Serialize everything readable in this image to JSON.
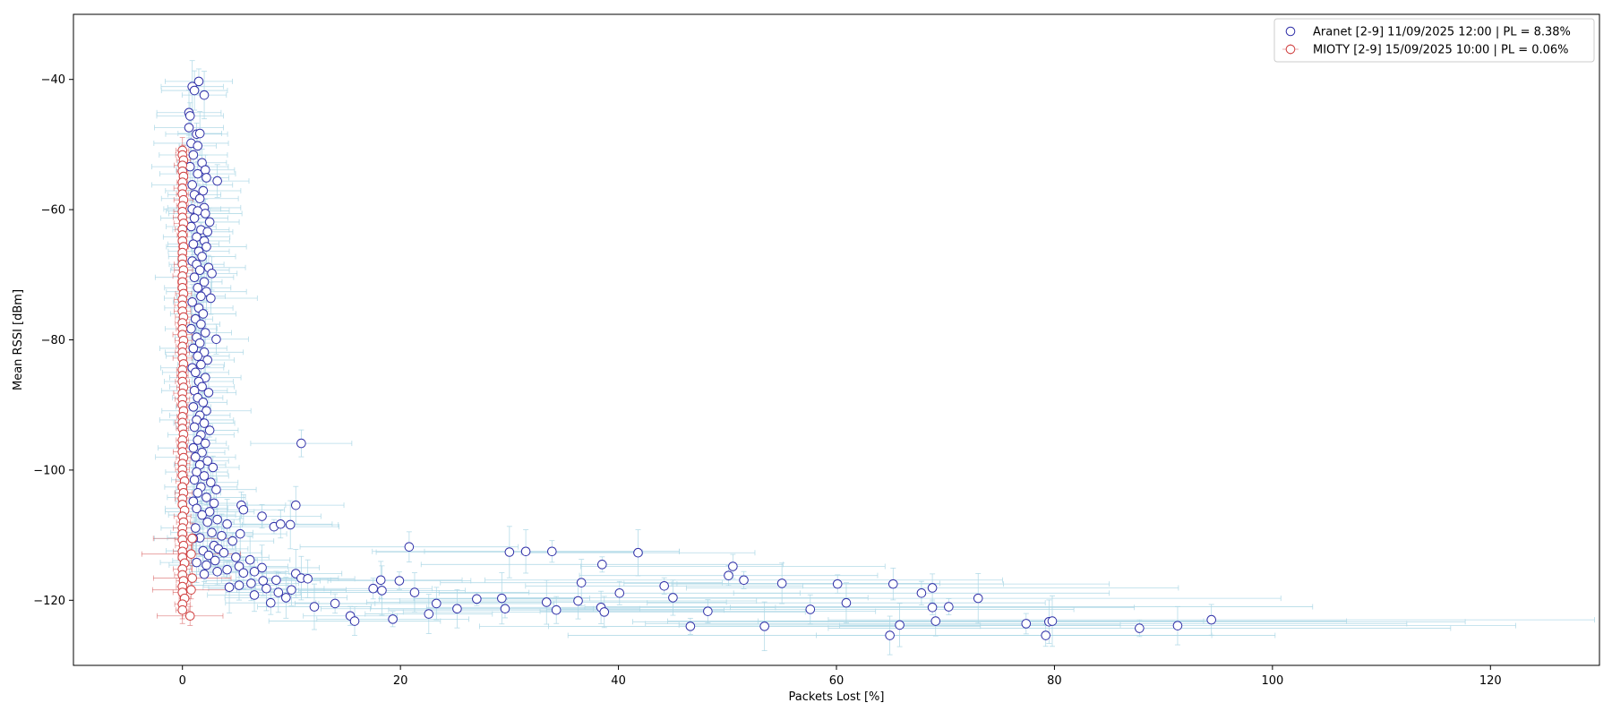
{
  "chart_data": {
    "type": "scatter",
    "title": "",
    "xlabel": "Packets Lost [%]",
    "ylabel": "Mean RSSI [dBm]",
    "xlim": [
      -10,
      130
    ],
    "ylim": [
      -130,
      -30
    ],
    "xticks": [
      0,
      20,
      40,
      60,
      80,
      100,
      120
    ],
    "yticks": [
      -40,
      -60,
      -80,
      -100,
      -120
    ],
    "grid": false,
    "legend_position": "top-right",
    "error_bars": true,
    "series": [
      {
        "name": "Aranet [2-9] 11/09/2025 12:00 | PL = 8.38%",
        "marker_edge_color": "#3030a8",
        "errorbar_color": "#add8e6",
        "points": [
          [
            1.5,
            -40.3
          ],
          [
            0.9,
            -41.1
          ],
          [
            1.1,
            -41.7
          ],
          [
            2.0,
            -42.4
          ],
          [
            0.6,
            -45.1
          ],
          [
            0.7,
            -45.6
          ],
          [
            0.6,
            -47.4
          ],
          [
            1.3,
            -48.4
          ],
          [
            1.6,
            -48.3
          ],
          [
            0.8,
            -49.8
          ],
          [
            1.4,
            -50.2
          ],
          [
            1.0,
            -51.6
          ],
          [
            1.8,
            -52.8
          ],
          [
            0.7,
            -53.4
          ],
          [
            2.1,
            -53.9
          ],
          [
            1.4,
            -54.5
          ],
          [
            2.2,
            -55.1
          ],
          [
            3.2,
            -55.6
          ],
          [
            0.9,
            -56.2
          ],
          [
            1.9,
            -57.1
          ],
          [
            1.1,
            -57.7
          ],
          [
            1.6,
            -58.3
          ],
          [
            0.9,
            -59.9
          ],
          [
            2.0,
            -59.7
          ],
          [
            1.4,
            -60.2
          ],
          [
            2.1,
            -60.6
          ],
          [
            1.1,
            -61.3
          ],
          [
            2.5,
            -61.9
          ],
          [
            0.8,
            -62.6
          ],
          [
            1.7,
            -63.1
          ],
          [
            2.3,
            -63.4
          ],
          [
            1.3,
            -64.2
          ],
          [
            2.0,
            -64.8
          ],
          [
            1.0,
            -65.3
          ],
          [
            2.2,
            -65.7
          ],
          [
            1.5,
            -66.4
          ],
          [
            1.8,
            -67.2
          ],
          [
            0.9,
            -67.9
          ],
          [
            1.3,
            -68.4
          ],
          [
            2.4,
            -68.9
          ],
          [
            1.6,
            -69.3
          ],
          [
            2.7,
            -69.8
          ],
          [
            1.1,
            -70.4
          ],
          [
            2.0,
            -71.1
          ],
          [
            1.4,
            -72.0
          ],
          [
            2.2,
            -72.6
          ],
          [
            1.7,
            -73.3
          ],
          [
            2.6,
            -73.6
          ],
          [
            0.9,
            -74.2
          ],
          [
            1.5,
            -75.1
          ],
          [
            1.9,
            -76.0
          ],
          [
            1.2,
            -76.8
          ],
          [
            1.7,
            -77.6
          ],
          [
            0.8,
            -78.3
          ],
          [
            2.1,
            -78.9
          ],
          [
            1.3,
            -79.6
          ],
          [
            3.1,
            -79.9
          ],
          [
            1.6,
            -80.5
          ],
          [
            1.0,
            -81.3
          ],
          [
            2.0,
            -81.9
          ],
          [
            1.4,
            -82.5
          ],
          [
            2.3,
            -83.1
          ],
          [
            1.7,
            -83.8
          ],
          [
            0.9,
            -84.3
          ],
          [
            1.2,
            -85.0
          ],
          [
            2.1,
            -85.8
          ],
          [
            1.5,
            -86.4
          ],
          [
            1.8,
            -87.2
          ],
          [
            1.1,
            -87.8
          ],
          [
            2.4,
            -88.1
          ],
          [
            1.4,
            -88.9
          ],
          [
            1.9,
            -89.6
          ],
          [
            1.0,
            -90.3
          ],
          [
            2.2,
            -90.9
          ],
          [
            1.6,
            -91.6
          ],
          [
            1.3,
            -92.3
          ],
          [
            2.0,
            -92.8
          ],
          [
            1.1,
            -93.4
          ],
          [
            2.5,
            -93.9
          ],
          [
            1.7,
            -94.6
          ],
          [
            1.4,
            -95.4
          ],
          [
            2.1,
            -95.9
          ],
          [
            1.0,
            -96.6
          ],
          [
            10.9,
            -95.9
          ],
          [
            1.8,
            -97.3
          ],
          [
            1.2,
            -98.0
          ],
          [
            2.3,
            -98.6
          ],
          [
            1.6,
            -99.2
          ],
          [
            2.8,
            -99.6
          ],
          [
            1.3,
            -100.3
          ],
          [
            2.0,
            -100.9
          ],
          [
            1.1,
            -101.5
          ],
          [
            2.6,
            -101.9
          ],
          [
            1.7,
            -102.6
          ],
          [
            3.1,
            -103.0
          ],
          [
            1.4,
            -103.5
          ],
          [
            2.2,
            -104.2
          ],
          [
            1.0,
            -104.8
          ],
          [
            2.9,
            -105.1
          ],
          [
            10.4,
            -105.4
          ],
          [
            5.4,
            -105.4
          ],
          [
            5.6,
            -106.1
          ],
          [
            1.3,
            -105.9
          ],
          [
            2.5,
            -106.4
          ],
          [
            1.8,
            -106.9
          ],
          [
            7.3,
            -107.1
          ],
          [
            3.2,
            -107.6
          ],
          [
            4.1,
            -108.3
          ],
          [
            8.4,
            -108.7
          ],
          [
            9.0,
            -108.3
          ],
          [
            9.9,
            -108.4
          ],
          [
            2.3,
            -108.0
          ],
          [
            1.2,
            -108.9
          ],
          [
            2.7,
            -109.6
          ],
          [
            5.3,
            -109.8
          ],
          [
            3.6,
            -110.1
          ],
          [
            1.6,
            -110.4
          ],
          [
            4.6,
            -110.9
          ],
          [
            1.0,
            -110.5
          ],
          [
            2.9,
            -111.6
          ],
          [
            3.3,
            -112.1
          ],
          [
            1.9,
            -112.4
          ],
          [
            3.8,
            -112.7
          ],
          [
            2.4,
            -113.1
          ],
          [
            4.9,
            -113.4
          ],
          [
            3.0,
            -113.9
          ],
          [
            6.2,
            -113.8
          ],
          [
            1.3,
            -114.2
          ],
          [
            2.2,
            -114.6
          ],
          [
            7.3,
            -115.0
          ],
          [
            5.2,
            -114.8
          ],
          [
            4.1,
            -115.3
          ],
          [
            3.2,
            -115.6
          ],
          [
            5.6,
            -115.8
          ],
          [
            6.6,
            -115.6
          ],
          [
            10.4,
            -115.9
          ],
          [
            2.0,
            -116.0
          ],
          [
            10.9,
            -116.6
          ],
          [
            11.5,
            -116.7
          ],
          [
            8.6,
            -116.9
          ],
          [
            7.4,
            -117.0
          ],
          [
            18.2,
            -116.9
          ],
          [
            19.9,
            -117.0
          ],
          [
            6.3,
            -117.4
          ],
          [
            5.2,
            -117.7
          ],
          [
            4.3,
            -118.0
          ],
          [
            7.7,
            -118.2
          ],
          [
            17.5,
            -118.2
          ],
          [
            18.3,
            -118.5
          ],
          [
            10.0,
            -118.4
          ],
          [
            21.3,
            -118.8
          ],
          [
            8.8,
            -118.8
          ],
          [
            6.6,
            -119.2
          ],
          [
            9.5,
            -119.6
          ],
          [
            8.1,
            -120.4
          ],
          [
            14.0,
            -120.5
          ],
          [
            23.3,
            -120.5
          ],
          [
            27.0,
            -119.8
          ],
          [
            29.3,
            -119.7
          ],
          [
            36.3,
            -120.1
          ],
          [
            33.4,
            -120.3
          ],
          [
            12.1,
            -121.0
          ],
          [
            25.2,
            -121.3
          ],
          [
            29.6,
            -121.3
          ],
          [
            34.3,
            -121.5
          ],
          [
            38.4,
            -121.1
          ],
          [
            38.7,
            -121.8
          ],
          [
            22.6,
            -122.1
          ],
          [
            15.4,
            -122.4
          ],
          [
            15.8,
            -123.2
          ],
          [
            19.3,
            -122.9
          ],
          [
            20.8,
            -111.8
          ],
          [
            30.0,
            -112.6
          ],
          [
            31.5,
            -112.5
          ],
          [
            33.9,
            -112.5
          ],
          [
            38.5,
            -114.5
          ],
          [
            41.8,
            -112.7
          ],
          [
            36.6,
            -117.3
          ],
          [
            40.1,
            -118.9
          ],
          [
            44.2,
            -117.8
          ],
          [
            45.0,
            -119.6
          ],
          [
            46.6,
            -124.0
          ],
          [
            48.2,
            -121.7
          ],
          [
            50.1,
            -116.2
          ],
          [
            50.5,
            -114.8
          ],
          [
            51.5,
            -116.9
          ],
          [
            53.4,
            -124.0
          ],
          [
            55.0,
            -117.4
          ],
          [
            57.6,
            -121.4
          ],
          [
            60.1,
            -117.5
          ],
          [
            60.9,
            -120.4
          ],
          [
            64.9,
            -125.4
          ],
          [
            65.2,
            -117.5
          ],
          [
            65.8,
            -123.8
          ],
          [
            67.8,
            -118.9
          ],
          [
            68.8,
            -118.1
          ],
          [
            69.1,
            -123.2
          ],
          [
            68.8,
            -121.1
          ],
          [
            70.3,
            -121.0
          ],
          [
            73.0,
            -119.7
          ],
          [
            77.4,
            -123.6
          ],
          [
            79.2,
            -125.4
          ],
          [
            79.5,
            -123.3
          ],
          [
            79.8,
            -123.2
          ],
          [
            87.8,
            -124.3
          ],
          [
            91.3,
            -123.9
          ],
          [
            94.4,
            -123.0
          ]
        ]
      },
      {
        "name": "MIOTY [2-9] 15/09/2025 10:00 | PL = 0.06%",
        "marker_edge_color": "#d04040",
        "errorbar_color": "#d04040",
        "points": [
          [
            0.0,
            -50.9
          ],
          [
            0.0,
            -51.6
          ],
          [
            0.1,
            -52.4
          ],
          [
            0.0,
            -53.2
          ],
          [
            0.0,
            -54.1
          ],
          [
            0.1,
            -54.9
          ],
          [
            0.0,
            -55.8
          ],
          [
            0.0,
            -56.7
          ],
          [
            0.0,
            -57.6
          ],
          [
            0.1,
            -58.5
          ],
          [
            0.0,
            -59.4
          ],
          [
            0.0,
            -60.3
          ],
          [
            0.0,
            -61.2
          ],
          [
            0.1,
            -62.1
          ],
          [
            0.0,
            -63.0
          ],
          [
            0.0,
            -63.9
          ],
          [
            0.0,
            -64.8
          ],
          [
            0.1,
            -65.7
          ],
          [
            0.0,
            -66.6
          ],
          [
            0.0,
            -67.5
          ],
          [
            0.0,
            -68.4
          ],
          [
            0.1,
            -69.3
          ],
          [
            0.0,
            -70.2
          ],
          [
            0.0,
            -71.1
          ],
          [
            0.0,
            -72.0
          ],
          [
            0.1,
            -72.9
          ],
          [
            0.0,
            -73.8
          ],
          [
            0.0,
            -74.7
          ],
          [
            0.0,
            -75.6
          ],
          [
            0.1,
            -76.5
          ],
          [
            0.0,
            -77.4
          ],
          [
            0.0,
            -78.3
          ],
          [
            0.0,
            -79.2
          ],
          [
            0.1,
            -80.1
          ],
          [
            0.0,
            -81.0
          ],
          [
            0.0,
            -81.9
          ],
          [
            0.0,
            -82.8
          ],
          [
            0.1,
            -83.7
          ],
          [
            0.0,
            -84.6
          ],
          [
            0.0,
            -85.5
          ],
          [
            0.0,
            -86.4
          ],
          [
            0.1,
            -87.3
          ],
          [
            0.0,
            -88.2
          ],
          [
            0.0,
            -89.1
          ],
          [
            0.0,
            -90.0
          ],
          [
            0.1,
            -90.9
          ],
          [
            0.0,
            -91.8
          ],
          [
            0.0,
            -92.7
          ],
          [
            0.0,
            -93.6
          ],
          [
            0.1,
            -94.5
          ],
          [
            0.0,
            -95.4
          ],
          [
            0.0,
            -96.3
          ],
          [
            0.0,
            -97.2
          ],
          [
            0.1,
            -98.1
          ],
          [
            0.0,
            -99.0
          ],
          [
            0.0,
            -99.9
          ],
          [
            0.0,
            -100.8
          ],
          [
            0.2,
            -101.7
          ],
          [
            0.0,
            -102.6
          ],
          [
            0.1,
            -103.5
          ],
          [
            0.0,
            -104.4
          ],
          [
            0.0,
            -105.3
          ],
          [
            0.2,
            -106.2
          ],
          [
            0.0,
            -107.1
          ],
          [
            0.1,
            -108.0
          ],
          [
            0.0,
            -108.9
          ],
          [
            0.0,
            -109.8
          ],
          [
            0.9,
            -110.5
          ],
          [
            0.0,
            -110.7
          ],
          [
            0.1,
            -111.6
          ],
          [
            0.0,
            -112.5
          ],
          [
            0.8,
            -112.9
          ],
          [
            0.0,
            -113.4
          ],
          [
            0.2,
            -114.3
          ],
          [
            0.0,
            -115.2
          ],
          [
            0.0,
            -116.1
          ],
          [
            0.9,
            -116.6
          ],
          [
            0.1,
            -117.0
          ],
          [
            0.0,
            -117.9
          ],
          [
            0.8,
            -118.4
          ],
          [
            0.0,
            -118.8
          ],
          [
            0.2,
            -119.7
          ],
          [
            0.0,
            -120.6
          ],
          [
            0.0,
            -121.5
          ],
          [
            0.7,
            -122.4
          ]
        ]
      }
    ]
  }
}
